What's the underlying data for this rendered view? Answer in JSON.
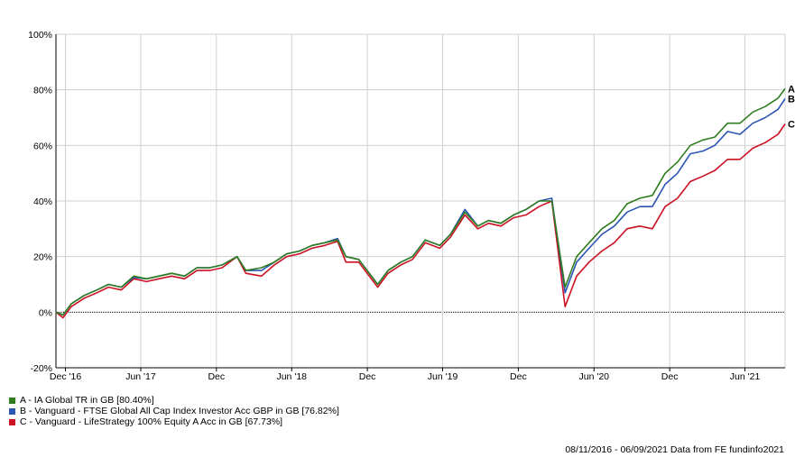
{
  "chart_data": {
    "type": "line",
    "ylim": [
      -20,
      100
    ],
    "y_ticks": [
      -20,
      0,
      20,
      40,
      60,
      80,
      100
    ],
    "y_tick_labels": [
      "-20%",
      "0%",
      "20%",
      "40%",
      "60%",
      "80%",
      "100%"
    ],
    "x_range": [
      "2016-11-08",
      "2021-09-06"
    ],
    "x_ticks": [
      {
        "date": "2016-12-01",
        "label": "Dec '16"
      },
      {
        "date": "2017-06-01",
        "label": "Jun '17"
      },
      {
        "date": "2017-12-01",
        "label": "Dec"
      },
      {
        "date": "2018-06-01",
        "label": "Jun '18"
      },
      {
        "date": "2018-12-01",
        "label": "Dec"
      },
      {
        "date": "2019-06-01",
        "label": "Jun '19"
      },
      {
        "date": "2019-12-01",
        "label": "Dec"
      },
      {
        "date": "2020-06-01",
        "label": "Jun '20"
      },
      {
        "date": "2020-12-01",
        "label": "Dec"
      },
      {
        "date": "2021-06-01",
        "label": "Jun '21"
      }
    ],
    "grid": true,
    "zero_line": "dotted",
    "legend_position": "bottom-left",
    "series": [
      {
        "name": "A - IA Global TR in GB [80.40%]",
        "end_label": "A",
        "color": "#2e7d1e",
        "points": [
          [
            "2016-11-08",
            0
          ],
          [
            "2016-11-25",
            -1
          ],
          [
            "2016-12-15",
            3
          ],
          [
            "2017-01-15",
            6
          ],
          [
            "2017-02-15",
            8
          ],
          [
            "2017-03-15",
            10
          ],
          [
            "2017-04-15",
            9
          ],
          [
            "2017-05-15",
            13
          ],
          [
            "2017-06-15",
            12
          ],
          [
            "2017-07-15",
            13
          ],
          [
            "2017-08-15",
            14
          ],
          [
            "2017-09-15",
            13
          ],
          [
            "2017-10-15",
            16
          ],
          [
            "2017-11-15",
            16
          ],
          [
            "2017-12-15",
            17
          ],
          [
            "2018-01-20",
            20
          ],
          [
            "2018-02-10",
            15
          ],
          [
            "2018-03-20",
            16
          ],
          [
            "2018-04-20",
            18
          ],
          [
            "2018-05-20",
            21
          ],
          [
            "2018-06-20",
            22
          ],
          [
            "2018-07-20",
            24
          ],
          [
            "2018-08-20",
            25
          ],
          [
            "2018-09-20",
            26
          ],
          [
            "2018-10-10",
            20
          ],
          [
            "2018-11-10",
            19
          ],
          [
            "2018-12-26",
            10
          ],
          [
            "2019-01-20",
            15
          ],
          [
            "2019-02-20",
            18
          ],
          [
            "2019-03-20",
            20
          ],
          [
            "2019-04-20",
            26
          ],
          [
            "2019-05-25",
            24
          ],
          [
            "2019-06-20",
            28
          ],
          [
            "2019-07-25",
            36
          ],
          [
            "2019-08-25",
            31
          ],
          [
            "2019-09-20",
            33
          ],
          [
            "2019-10-20",
            32
          ],
          [
            "2019-11-20",
            35
          ],
          [
            "2019-12-20",
            37
          ],
          [
            "2020-01-20",
            40
          ],
          [
            "2020-02-20",
            40
          ],
          [
            "2020-03-23",
            9
          ],
          [
            "2020-04-20",
            20
          ],
          [
            "2020-05-20",
            25
          ],
          [
            "2020-06-20",
            30
          ],
          [
            "2020-07-20",
            33
          ],
          [
            "2020-08-20",
            39
          ],
          [
            "2020-09-20",
            41
          ],
          [
            "2020-10-20",
            42
          ],
          [
            "2020-11-20",
            50
          ],
          [
            "2020-12-20",
            54
          ],
          [
            "2021-01-20",
            60
          ],
          [
            "2021-02-20",
            62
          ],
          [
            "2021-03-20",
            63
          ],
          [
            "2021-04-20",
            68
          ],
          [
            "2021-05-20",
            68
          ],
          [
            "2021-06-20",
            72
          ],
          [
            "2021-07-20",
            74
          ],
          [
            "2021-08-20",
            77
          ],
          [
            "2021-09-06",
            80.4
          ]
        ]
      },
      {
        "name": "B - Vanguard - FTSE Global All Cap Index Investor Acc GBP in GB [76.82%]",
        "end_label": "B",
        "color": "#2b55b5",
        "points": [
          [
            "2016-11-08",
            0
          ],
          [
            "2016-11-25",
            -1
          ],
          [
            "2016-12-15",
            3
          ],
          [
            "2017-01-15",
            6
          ],
          [
            "2017-02-15",
            8
          ],
          [
            "2017-03-15",
            10
          ],
          [
            "2017-04-15",
            9
          ],
          [
            "2017-05-15",
            12.5
          ],
          [
            "2017-06-15",
            12
          ],
          [
            "2017-07-15",
            13
          ],
          [
            "2017-08-15",
            14
          ],
          [
            "2017-09-15",
            13
          ],
          [
            "2017-10-15",
            16
          ],
          [
            "2017-11-15",
            16
          ],
          [
            "2017-12-15",
            17
          ],
          [
            "2018-01-20",
            20
          ],
          [
            "2018-02-10",
            15
          ],
          [
            "2018-03-20",
            15
          ],
          [
            "2018-04-20",
            18
          ],
          [
            "2018-05-20",
            21
          ],
          [
            "2018-06-20",
            22
          ],
          [
            "2018-07-20",
            24
          ],
          [
            "2018-08-20",
            25
          ],
          [
            "2018-09-20",
            26.5
          ],
          [
            "2018-10-10",
            20
          ],
          [
            "2018-11-10",
            19
          ],
          [
            "2018-12-26",
            10
          ],
          [
            "2019-01-20",
            15
          ],
          [
            "2019-02-20",
            18
          ],
          [
            "2019-03-20",
            20
          ],
          [
            "2019-04-20",
            26
          ],
          [
            "2019-05-25",
            24
          ],
          [
            "2019-06-20",
            28
          ],
          [
            "2019-07-25",
            37
          ],
          [
            "2019-08-25",
            31
          ],
          [
            "2019-09-20",
            33
          ],
          [
            "2019-10-20",
            32
          ],
          [
            "2019-11-20",
            35
          ],
          [
            "2019-12-20",
            37
          ],
          [
            "2020-01-20",
            40
          ],
          [
            "2020-02-20",
            41
          ],
          [
            "2020-03-23",
            7
          ],
          [
            "2020-04-20",
            18
          ],
          [
            "2020-05-20",
            23
          ],
          [
            "2020-06-20",
            28
          ],
          [
            "2020-07-20",
            31
          ],
          [
            "2020-08-20",
            36
          ],
          [
            "2020-09-20",
            38
          ],
          [
            "2020-10-20",
            38
          ],
          [
            "2020-11-20",
            46
          ],
          [
            "2020-12-20",
            50
          ],
          [
            "2021-01-20",
            57
          ],
          [
            "2021-02-20",
            58
          ],
          [
            "2021-03-20",
            60
          ],
          [
            "2021-04-20",
            65
          ],
          [
            "2021-05-20",
            64
          ],
          [
            "2021-06-20",
            68
          ],
          [
            "2021-07-20",
            70
          ],
          [
            "2021-08-20",
            73
          ],
          [
            "2021-09-06",
            76.82
          ]
        ]
      },
      {
        "name": "C - Vanguard - LifeStrategy 100% Equity A Acc in GB [67.73%]",
        "end_label": "C",
        "color": "#cc1122",
        "points": [
          [
            "2016-11-08",
            0
          ],
          [
            "2016-11-25",
            -2
          ],
          [
            "2016-12-15",
            2
          ],
          [
            "2017-01-15",
            5
          ],
          [
            "2017-02-15",
            7
          ],
          [
            "2017-03-15",
            9
          ],
          [
            "2017-04-15",
            8
          ],
          [
            "2017-05-15",
            12
          ],
          [
            "2017-06-15",
            11
          ],
          [
            "2017-07-15",
            12
          ],
          [
            "2017-08-15",
            13
          ],
          [
            "2017-09-15",
            12
          ],
          [
            "2017-10-15",
            15
          ],
          [
            "2017-11-15",
            15
          ],
          [
            "2017-12-15",
            16
          ],
          [
            "2018-01-20",
            20
          ],
          [
            "2018-02-10",
            14
          ],
          [
            "2018-03-20",
            13
          ],
          [
            "2018-04-20",
            17
          ],
          [
            "2018-05-20",
            20
          ],
          [
            "2018-06-20",
            21
          ],
          [
            "2018-07-20",
            23
          ],
          [
            "2018-08-20",
            24
          ],
          [
            "2018-09-20",
            25.5
          ],
          [
            "2018-10-10",
            18
          ],
          [
            "2018-11-10",
            18
          ],
          [
            "2018-12-26",
            9
          ],
          [
            "2019-01-20",
            14
          ],
          [
            "2019-02-20",
            17
          ],
          [
            "2019-03-20",
            19
          ],
          [
            "2019-04-20",
            25
          ],
          [
            "2019-05-25",
            23
          ],
          [
            "2019-06-20",
            27
          ],
          [
            "2019-07-25",
            35
          ],
          [
            "2019-08-25",
            30
          ],
          [
            "2019-09-20",
            32
          ],
          [
            "2019-10-20",
            31
          ],
          [
            "2019-11-20",
            34
          ],
          [
            "2019-12-20",
            35
          ],
          [
            "2020-01-20",
            38
          ],
          [
            "2020-02-20",
            40
          ],
          [
            "2020-03-23",
            2
          ],
          [
            "2020-04-20",
            13
          ],
          [
            "2020-05-20",
            18
          ],
          [
            "2020-06-20",
            22
          ],
          [
            "2020-07-20",
            25
          ],
          [
            "2020-08-20",
            30
          ],
          [
            "2020-09-20",
            31
          ],
          [
            "2020-10-20",
            30
          ],
          [
            "2020-11-20",
            38
          ],
          [
            "2020-12-20",
            41
          ],
          [
            "2021-01-20",
            47
          ],
          [
            "2021-02-20",
            49
          ],
          [
            "2021-03-20",
            51
          ],
          [
            "2021-04-20",
            55
          ],
          [
            "2021-05-20",
            55
          ],
          [
            "2021-06-20",
            59
          ],
          [
            "2021-07-20",
            61
          ],
          [
            "2021-08-20",
            64
          ],
          [
            "2021-09-06",
            67.73
          ]
        ]
      }
    ]
  },
  "footer_text": "08/11/2016 - 06/09/2021 Data from FE fundinfo2021"
}
